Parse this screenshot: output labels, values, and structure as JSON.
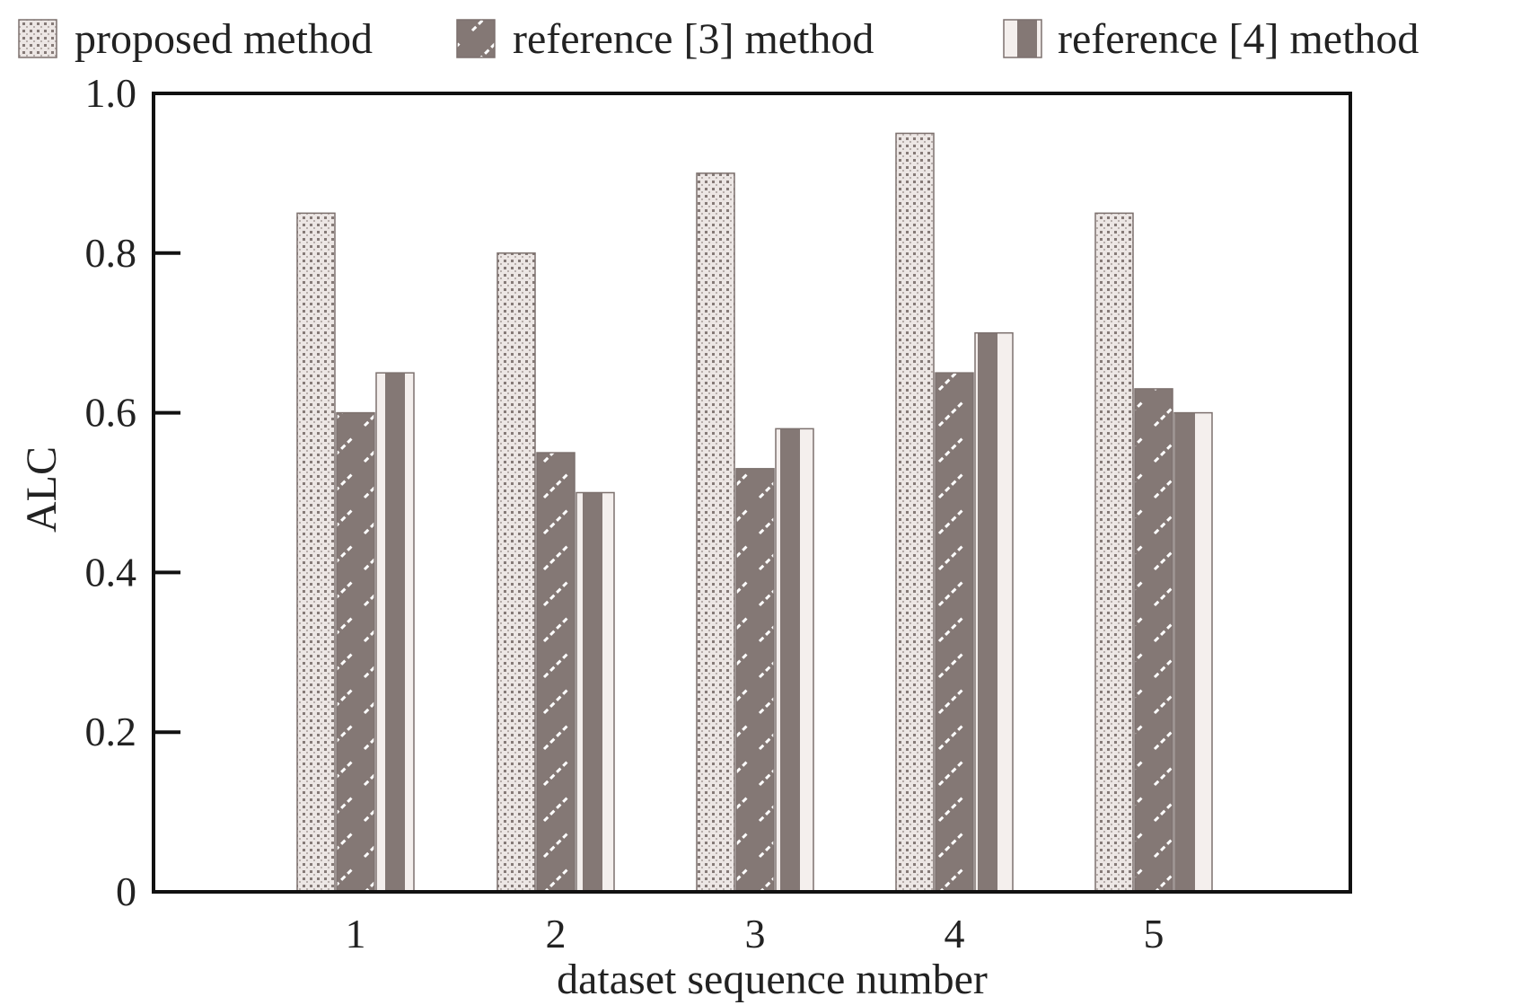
{
  "chart_data": {
    "type": "bar",
    "title": "",
    "xlabel": "dataset sequence number",
    "ylabel": "ALC",
    "categories": [
      "1",
      "2",
      "3",
      "4",
      "5"
    ],
    "ylim": [
      0,
      1.0
    ],
    "yticks": [
      {
        "value": 0,
        "label": "0"
      },
      {
        "value": 0.2,
        "label": "0.2"
      },
      {
        "value": 0.4,
        "label": "0.4"
      },
      {
        "value": 0.6,
        "label": "0.6"
      },
      {
        "value": 0.8,
        "label": "0.8"
      },
      {
        "value": 1.0,
        "label": "1.0"
      }
    ],
    "grid": false,
    "legend_position": "top",
    "series": [
      {
        "name": "proposed method",
        "pattern": "dots",
        "color": "#ece6e4",
        "values": [
          0.85,
          0.8,
          0.9,
          0.95,
          0.85
        ]
      },
      {
        "name": "reference [3] method",
        "pattern": "diagonal-dashes",
        "color": "#847875",
        "values": [
          0.6,
          0.55,
          0.53,
          0.65,
          0.63
        ]
      },
      {
        "name": "reference [4] method",
        "pattern": "vertical-stripes",
        "color": "#f4efed",
        "values": [
          0.65,
          0.5,
          0.58,
          0.7,
          0.6
        ]
      }
    ]
  }
}
